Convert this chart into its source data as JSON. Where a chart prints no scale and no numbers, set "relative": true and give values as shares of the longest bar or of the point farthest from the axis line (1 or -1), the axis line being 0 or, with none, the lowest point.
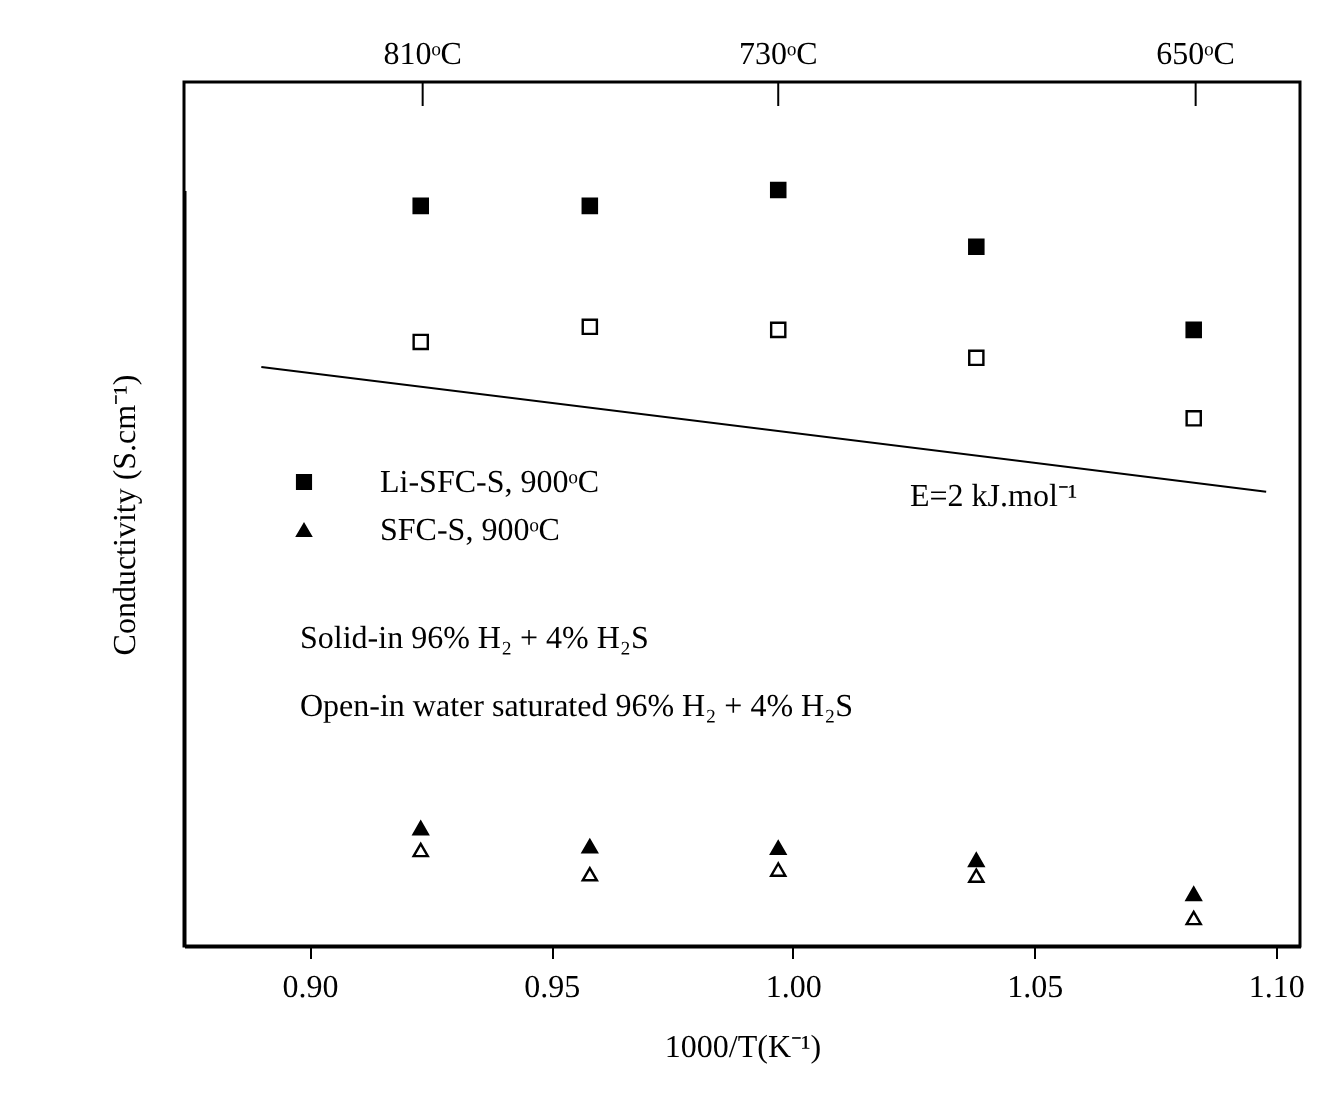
{
  "chart_data": {
    "type": "scatter",
    "relative": true,
    "xlabel": "1000/T(K⁻¹)",
    "ylabel": "Conductivity (S.cm⁻¹)",
    "xlim": [
      0.874,
      1.105
    ],
    "xticks": [
      {
        "value": 0.9,
        "label": "0.90"
      },
      {
        "value": 0.95,
        "label": "0.95"
      },
      {
        "value": 1.0,
        "label": "1.00"
      },
      {
        "value": 1.05,
        "label": "1.05"
      },
      {
        "value": 1.1,
        "label": "1.10"
      }
    ],
    "x": [
      0.923,
      0.958,
      0.997,
      1.038,
      1.083
    ],
    "legend": "left",
    "series": [
      {
        "name": "Li-SFC-S, 900ᵒC",
        "color": "#000000",
        "marker": "square",
        "values": [
          0.979,
          0.979,
          1,
          0.925,
          0.815
        ]
      },
      {
        "color": "#ffffff",
        "marker": "square",
        "values": [
          0.799,
          0.819,
          0.815,
          0.778,
          0.698
        ]
      },
      {
        "type": "line",
        "color": "#000000",
        "marker": "none",
        "x": [
          0.89,
          1.098
        ],
        "values": [
          0.766,
          0.601
        ]
      },
      {
        "name": "SFC-S, 900ᵒC",
        "color": "#000000",
        "marker": "triangle",
        "values": [
          0.156,
          0.132,
          0.13,
          0.114,
          0.069
        ]
      },
      {
        "color": "#ffffff",
        "marker": "triangle",
        "values": [
          0.127,
          0.095,
          0.101,
          0.093,
          0.037
        ]
      }
    ],
    "annotations": [
      {
        "text": "810ᵒC",
        "x": 0.9234
      },
      {
        "text": "730ᵒC",
        "x": 0.997
      },
      {
        "text": "650ᵒC",
        "x": 1.0834
      },
      "E=2 kJ.mol⁻¹",
      "Solid-in 96% H₂ + 4% H₂S",
      "Open-in water saturated 96% H₂ + 4% H₂S"
    ]
  }
}
